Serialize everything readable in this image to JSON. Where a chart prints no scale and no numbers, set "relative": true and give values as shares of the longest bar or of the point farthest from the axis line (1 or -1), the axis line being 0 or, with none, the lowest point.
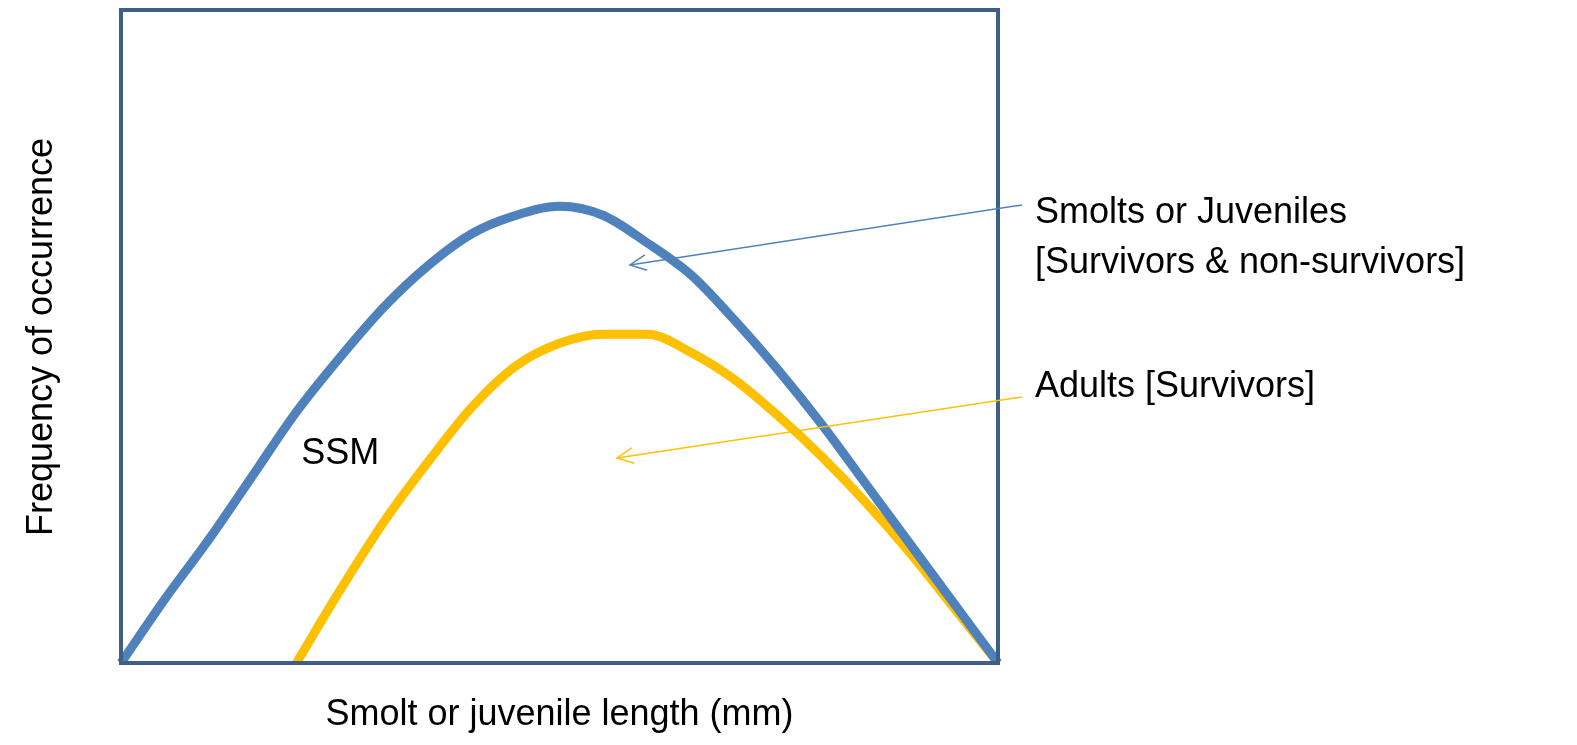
{
  "chart_data": {
    "type": "line",
    "relative": true,
    "xlabel": "Smolt or juvenile length (mm)",
    "ylabel": "Frequency of occurrence",
    "annotations": [
      "SSM"
    ],
    "categories": [
      null,
      null,
      null,
      null,
      null,
      null,
      null,
      null,
      null,
      null,
      null,
      null,
      null,
      null,
      null,
      null,
      null,
      null,
      null,
      null,
      null
    ],
    "series": [
      {
        "name": "Smolts or Juveniles\n[Survivors & non-survivors]",
        "color": "#4f81bd",
        "values": [
          0,
          0.14,
          0.27,
          0.41,
          0.55,
          0.67,
          0.78,
          0.87,
          0.94,
          0.98,
          1,
          0.98,
          0.92,
          0.85,
          0.75,
          0.64,
          0.52,
          0.39,
          0.26,
          0.13,
          0
        ]
      },
      {
        "name": "Adults [Survivors]",
        "color": "#ffc000",
        "values": [
          null,
          null,
          null,
          null,
          0,
          0.16,
          0.31,
          0.44,
          0.56,
          0.65,
          0.7,
          0.72,
          0.72,
          0.68,
          0.62,
          0.54,
          0.45,
          0.35,
          0.24,
          0.12,
          0
        ]
      }
    ],
    "legend": false,
    "marker": "none",
    "line_style": "solid"
  }
}
